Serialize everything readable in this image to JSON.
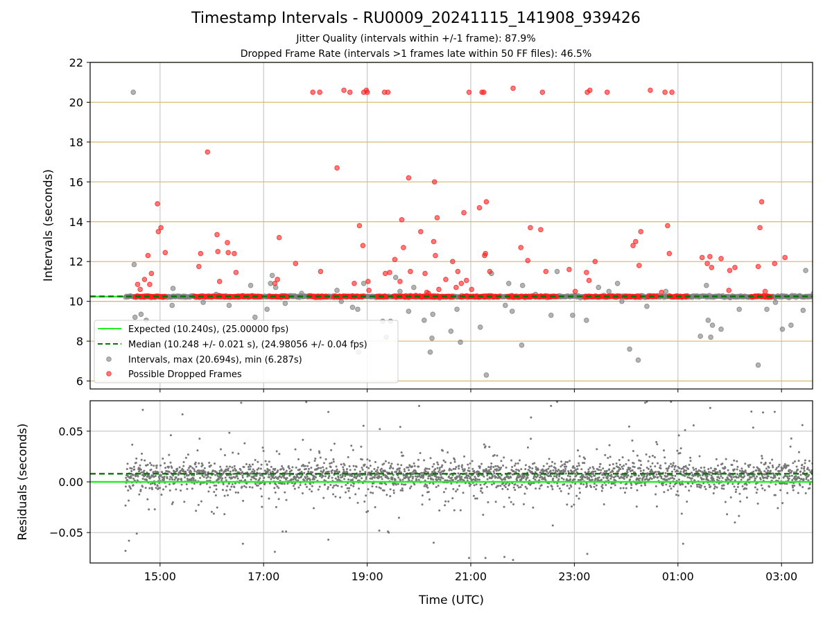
{
  "header": {
    "title": "Timestamp Intervals - RU0009_20241115_141908_939426",
    "subtitle_1": "Jitter Quality (intervals within +/-1 frame): 87.9%",
    "subtitle_2": "Dropped Frame Rate (intervals >1 frames late within 50 FF files): 46.5%"
  },
  "colors": {
    "expected": "#22ee22",
    "median": "#007700",
    "intervals": "#808080",
    "dropped": "#ff2020",
    "hgrid": "#d4b86a",
    "vgrid": "#c8c8c8"
  },
  "chart_data": [
    {
      "type": "scatter",
      "name": "intervals",
      "ylabel": "Intervals (seconds)",
      "ylim": [
        5.6,
        22
      ],
      "xlim": [
        "13:39",
        "03:36"
      ],
      "yticks": [
        6,
        8,
        10,
        12,
        14,
        16,
        18,
        20,
        22
      ],
      "xticks": [
        "15:00",
        "17:00",
        "19:00",
        "21:00",
        "23:00",
        "01:00",
        "03:00"
      ],
      "grid": true,
      "legend_position": "lower-left",
      "legend": [
        {
          "label": "Expected (10.240s), (25.00000 fps)",
          "style": "solid-line"
        },
        {
          "label": "Median (10.248 +/- 0.021 s), (24.98056 +/- 0.04 fps)",
          "style": "dashed-line"
        },
        {
          "label": "Intervals, max (20.694s), min (6.287s)",
          "style": "gray-marker"
        },
        {
          "label": "Possible Dropped Frames",
          "style": "red-marker"
        }
      ],
      "expected": 10.24,
      "median": 10.248,
      "baseline_range": [
        "14:20",
        "03:36"
      ],
      "intervals_outliers": [
        [
          "14:29",
          20.5
        ],
        [
          "14:30",
          11.85
        ],
        [
          "14:31",
          9.2
        ],
        [
          "14:38",
          9.35
        ],
        [
          "14:44",
          9.05
        ],
        [
          "15:14",
          9.8
        ],
        [
          "15:15",
          10.65
        ],
        [
          "15:50",
          9.95
        ],
        [
          "16:20",
          9.8
        ],
        [
          "16:45",
          10.8
        ],
        [
          "16:50",
          9.2
        ],
        [
          "17:04",
          9.6
        ],
        [
          "17:08",
          10.9
        ],
        [
          "17:10",
          11.3
        ],
        [
          "17:14",
          10.7
        ],
        [
          "17:25",
          9.9
        ],
        [
          "17:44",
          10.4
        ],
        [
          "18:25",
          10.55
        ],
        [
          "18:43",
          9.7
        ],
        [
          "18:49",
          9.6
        ],
        [
          "18:50",
          7.45
        ],
        [
          "18:56",
          10.9
        ],
        [
          "19:18",
          9.0
        ],
        [
          "19:22",
          8.2
        ],
        [
          "19:27",
          9.0
        ],
        [
          "19:33",
          11.2
        ],
        [
          "19:38",
          10.5
        ],
        [
          "19:48",
          9.5
        ],
        [
          "19:54",
          10.7
        ],
        [
          "20:06",
          9.05
        ],
        [
          "20:13",
          7.45
        ],
        [
          "20:16",
          9.35
        ],
        [
          "20:15",
          8.15
        ],
        [
          "20:37",
          8.5
        ],
        [
          "20:44",
          9.6
        ],
        [
          "20:48",
          7.95
        ],
        [
          "20:56",
          10.2
        ],
        [
          "21:11",
          8.7
        ],
        [
          "21:18",
          6.3
        ],
        [
          "21:24",
          11.4
        ],
        [
          "21:40",
          9.8
        ],
        [
          "21:44",
          10.9
        ],
        [
          "21:48",
          9.5
        ],
        [
          "21:59",
          7.8
        ],
        [
          "22:00",
          10.8
        ],
        [
          "22:15",
          10.35
        ],
        [
          "22:33",
          9.3
        ],
        [
          "22:40",
          11.5
        ],
        [
          "22:58",
          9.3
        ],
        [
          "23:14",
          9.05
        ],
        [
          "23:28",
          10.7
        ],
        [
          "23:40",
          10.5
        ],
        [
          "23:50",
          10.9
        ],
        [
          "24:04",
          7.6
        ],
        [
          "24:14",
          7.05
        ],
        [
          "24:24",
          9.75
        ],
        [
          "24:46",
          10.5
        ],
        [
          "25:26",
          8.25
        ],
        [
          "25:33",
          10.8
        ],
        [
          "25:35",
          9.05
        ],
        [
          "25:38",
          8.2
        ],
        [
          "25:40",
          8.8
        ],
        [
          "25:50",
          8.6
        ],
        [
          "26:00",
          10.2
        ],
        [
          "26:11",
          9.6
        ],
        [
          "26:33",
          6.8
        ],
        [
          "26:43",
          9.6
        ],
        [
          "27:01",
          8.6
        ],
        [
          "27:11",
          8.8
        ],
        [
          "27:25",
          9.55
        ],
        [
          "27:28",
          11.55
        ],
        [
          "27:37",
          10.4
        ],
        [
          "27:48",
          11.05
        ],
        [
          "27:52",
          8.0
        ],
        [
          "27:54",
          8.0
        ],
        [
          "26:53",
          9.95
        ],
        [
          "16:05",
          10.35
        ],
        [
          "18:30",
          10.0
        ],
        [
          "23:55",
          10.0
        ]
      ],
      "dropped_frames": [
        [
          "14:34",
          10.85
        ],
        [
          "14:37",
          10.6
        ],
        [
          "14:42",
          11.1
        ],
        [
          "14:46",
          12.3
        ],
        [
          "14:48",
          10.85
        ],
        [
          "14:50",
          11.4
        ],
        [
          "14:57",
          14.9
        ],
        [
          "14:58",
          13.5
        ],
        [
          "15:01",
          13.7
        ],
        [
          "15:06",
          12.45
        ],
        [
          "15:45",
          11.75
        ],
        [
          "15:47",
          12.4
        ],
        [
          "15:55",
          17.5
        ],
        [
          "16:06",
          13.35
        ],
        [
          "16:07",
          12.5
        ],
        [
          "16:09",
          11.0
        ],
        [
          "16:18",
          12.95
        ],
        [
          "16:19",
          12.45
        ],
        [
          "16:26",
          12.4
        ],
        [
          "16:28",
          11.45
        ],
        [
          "17:13",
          10.9
        ],
        [
          "17:16",
          11.1
        ],
        [
          "17:18",
          13.2
        ],
        [
          "17:37",
          11.9
        ],
        [
          "17:57",
          20.5
        ],
        [
          "18:05",
          20.5
        ],
        [
          "18:06",
          11.5
        ],
        [
          "18:25",
          16.7
        ],
        [
          "18:33",
          20.6
        ],
        [
          "18:40",
          20.5
        ],
        [
          "18:45",
          10.9
        ],
        [
          "18:51",
          13.8
        ],
        [
          "18:55",
          12.8
        ],
        [
          "18:56",
          20.5
        ],
        [
          "18:59",
          20.6
        ],
        [
          "19:00",
          20.5
        ],
        [
          "19:01",
          11.0
        ],
        [
          "19:20",
          20.5
        ],
        [
          "19:24",
          20.5
        ],
        [
          "19:21",
          11.4
        ],
        [
          "19:26",
          11.45
        ],
        [
          "19:32",
          12.1
        ],
        [
          "19:38",
          11.0
        ],
        [
          "19:40",
          14.1
        ],
        [
          "19:42",
          12.7
        ],
        [
          "19:48",
          16.2
        ],
        [
          "19:50",
          11.5
        ],
        [
          "20:02",
          13.5
        ],
        [
          "20:07",
          11.4
        ],
        [
          "20:11",
          10.4
        ],
        [
          "20:17",
          13.0
        ],
        [
          "20:19",
          12.3
        ],
        [
          "20:18",
          16.0
        ],
        [
          "20:21",
          14.2
        ],
        [
          "20:23",
          10.6
        ],
        [
          "20:31",
          11.1
        ],
        [
          "20:39",
          12.0
        ],
        [
          "20:43",
          10.7
        ],
        [
          "20:45",
          11.5
        ],
        [
          "20:49",
          10.9
        ],
        [
          "20:52",
          14.45
        ],
        [
          "20:55",
          11.05
        ],
        [
          "20:58",
          20.5
        ],
        [
          "21:10",
          14.7
        ],
        [
          "21:13",
          20.5
        ],
        [
          "21:15",
          20.5
        ],
        [
          "21:16",
          12.3
        ],
        [
          "21:17",
          12.4
        ],
        [
          "21:18",
          15.0
        ],
        [
          "21:22",
          11.5
        ],
        [
          "21:49",
          20.7
        ],
        [
          "21:58",
          12.7
        ],
        [
          "22:06",
          12.05
        ],
        [
          "22:09",
          13.7
        ],
        [
          "22:21",
          13.6
        ],
        [
          "22:23",
          20.5
        ],
        [
          "22:27",
          11.5
        ],
        [
          "22:54",
          11.6
        ],
        [
          "23:15",
          20.5
        ],
        [
          "23:18",
          20.6
        ],
        [
          "23:14",
          11.45
        ],
        [
          "23:17",
          11.05
        ],
        [
          "23:24",
          12.0
        ],
        [
          "23:38",
          20.5
        ],
        [
          "24:08",
          12.8
        ],
        [
          "24:11",
          13.0
        ],
        [
          "24:15",
          11.8
        ],
        [
          "24:17",
          13.5
        ],
        [
          "24:28",
          20.6
        ],
        [
          "24:45",
          20.5
        ],
        [
          "24:48",
          13.8
        ],
        [
          "24:50",
          12.4
        ],
        [
          "24:53",
          20.5
        ],
        [
          "25:28",
          12.2
        ],
        [
          "25:34",
          11.9
        ],
        [
          "25:37",
          12.25
        ],
        [
          "25:39",
          11.7
        ],
        [
          "25:50",
          12.15
        ],
        [
          "25:59",
          10.55
        ],
        [
          "26:00",
          11.55
        ],
        [
          "26:06",
          11.7
        ],
        [
          "26:33",
          11.75
        ],
        [
          "26:35",
          13.7
        ],
        [
          "26:37",
          15.0
        ],
        [
          "26:52",
          11.9
        ],
        [
          "27:04",
          12.2
        ],
        [
          "27:48",
          10.5
        ],
        [
          "27:53",
          12.5
        ],
        [
          "27:55",
          13.75
        ],
        [
          "27:57",
          13.9
        ],
        [
          "27:58",
          11.5
        ],
        [
          "28:04",
          11.45
        ],
        [
          "28:09",
          12.6
        ],
        [
          "28:27",
          12.35
        ],
        [
          "19:02",
          10.55
        ],
        [
          "20:09",
          10.45
        ],
        [
          "21:01",
          10.6
        ],
        [
          "23:01",
          10.5
        ],
        [
          "24:41",
          10.45
        ],
        [
          "26:41",
          10.5
        ]
      ],
      "dropped_clusters": [
        [
          "14:31",
          "15:06"
        ],
        [
          "15:40",
          "16:58"
        ],
        [
          "17:06",
          "17:29"
        ],
        [
          "17:53",
          "18:14"
        ],
        [
          "18:21",
          "18:56"
        ],
        [
          "19:11",
          "19:23"
        ],
        [
          "19:30",
          "20:40"
        ],
        [
          "20:48",
          "21:33"
        ],
        [
          "21:43",
          "22:40"
        ],
        [
          "23:12",
          "23:53"
        ],
        [
          "23:58",
          "24:17"
        ],
        [
          "24:25",
          "24:36"
        ],
        [
          "24:50",
          "25:11"
        ],
        [
          "26:25",
          "26:49"
        ],
        [
          "27:51",
          "28:36"
        ]
      ]
    },
    {
      "type": "scatter",
      "name": "residuals",
      "ylabel": "Residuals (seconds)",
      "xlabel": "Time (UTC)",
      "ylim": [
        -0.08,
        0.08
      ],
      "yticks": [
        -0.05,
        0.0,
        0.05
      ],
      "ytick_labels": [
        "−0.05",
        "0.00",
        "0.05"
      ],
      "xticks": [
        "15:00",
        "17:00",
        "19:00",
        "21:00",
        "23:00",
        "01:00",
        "03:00"
      ],
      "grid": true,
      "expected": 0.0,
      "median": 0.008,
      "residual_range": [
        "14:20",
        "03:36"
      ],
      "residual_center": 0.006,
      "residual_outliers": [
        [
          "14:20",
          -0.068
        ],
        [
          "14:24",
          -0.058
        ],
        [
          "14:33",
          -0.051
        ],
        [
          "14:40",
          0.071
        ],
        [
          "16:36",
          -0.061
        ],
        [
          "17:13",
          -0.069
        ],
        [
          "17:22",
          -0.049
        ],
        [
          "17:26",
          -0.049
        ],
        [
          "18:15",
          -0.057
        ],
        [
          "19:14",
          -0.048
        ],
        [
          "19:24",
          -0.049
        ],
        [
          "19:25",
          -0.05
        ],
        [
          "20:17",
          -0.06
        ],
        [
          "20:58",
          -0.075
        ],
        [
          "21:17",
          -0.075
        ],
        [
          "21:39",
          -0.074
        ],
        [
          "21:49",
          -0.077
        ],
        [
          "22:35",
          -0.043
        ],
        [
          "22:40",
          0.079
        ],
        [
          "23:15",
          -0.071
        ],
        [
          "24:22",
          0.078
        ],
        [
          "24:52",
          0.079
        ],
        [
          "25:06",
          -0.061
        ],
        [
          "26:06",
          -0.04
        ],
        [
          "27:41",
          0.072
        ],
        [
          "28:32",
          -0.03
        ],
        [
          "18:15",
          0.069
        ],
        [
          "16:34",
          0.078
        ],
        [
          "22:33",
          0.075
        ],
        [
          "24:24",
          0.079
        ]
      ]
    }
  ]
}
